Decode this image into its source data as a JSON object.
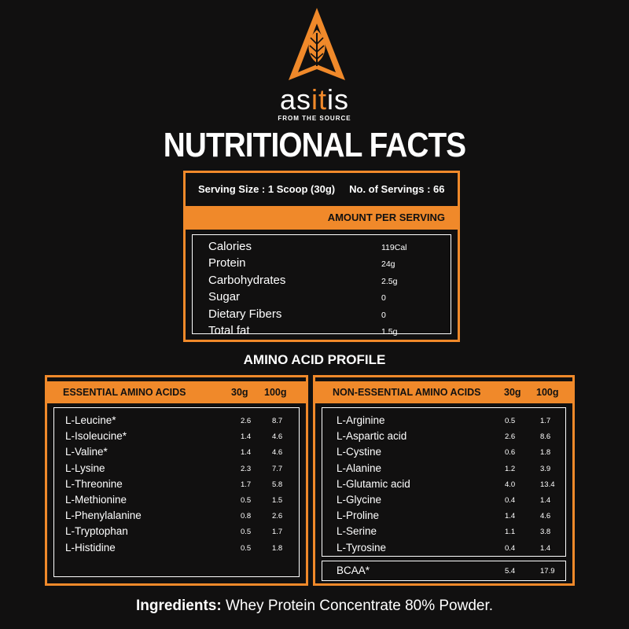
{
  "brand": {
    "name_a": "as",
    "name_b": "it",
    "name_c": "is",
    "tagline": "FROM THE SOURCE",
    "accent": "#f0892a"
  },
  "title": "NUTRITIONAL FACTS",
  "serving": {
    "size": "Serving Size : 1 Scoop (30g)",
    "count": "No. of Servings : 66",
    "header": "AMOUNT PER SERVING",
    "items": [
      {
        "label": "Calories",
        "value": "119Cal"
      },
      {
        "label": "Protein",
        "value": "24g"
      },
      {
        "label": "Carbohydrates",
        "value": "2.5g"
      },
      {
        "label": "Sugar",
        "value": "0"
      },
      {
        "label": "Dietary Fibers",
        "value": "0"
      },
      {
        "label": "Total fat",
        "value": "1.5g"
      }
    ]
  },
  "amino_title": "AMINO ACID PROFILE",
  "essential": {
    "header": "ESSENTIAL AMINO ACIDS",
    "col1": "30g",
    "col2": "100g",
    "items": [
      {
        "label": "L-Leucine*",
        "v30": "2.6",
        "v100": "8.7"
      },
      {
        "label": "L-Isoleucine*",
        "v30": "1.4",
        "v100": "4.6"
      },
      {
        "label": "L-Valine*",
        "v30": "1.4",
        "v100": "4.6"
      },
      {
        "label": "L-Lysine",
        "v30": "2.3",
        "v100": "7.7"
      },
      {
        "label": "L-Threonine",
        "v30": "1.7",
        "v100": "5.8"
      },
      {
        "label": "L-Methionine",
        "v30": "0.5",
        "v100": "1.5"
      },
      {
        "label": "L-Phenylalanine",
        "v30": "0.8",
        "v100": "2.6"
      },
      {
        "label": "L-Tryptophan",
        "v30": "0.5",
        "v100": "1.7"
      },
      {
        "label": "L-Histidine",
        "v30": "0.5",
        "v100": "1.8"
      }
    ]
  },
  "nonessential": {
    "header": "NON-ESSENTIAL AMINO ACIDS",
    "col1": "30g",
    "col2": "100g",
    "items": [
      {
        "label": "L-Arginine",
        "v30": "0.5",
        "v100": "1.7"
      },
      {
        "label": "L-Aspartic acid",
        "v30": "2.6",
        "v100": "8.6"
      },
      {
        "label": "L-Cystine",
        "v30": "0.6",
        "v100": "1.8"
      },
      {
        "label": "L-Alanine",
        "v30": "1.2",
        "v100": "3.9"
      },
      {
        "label": "L-Glutamic acid",
        "v30": "4.0",
        "v100": "13.4"
      },
      {
        "label": "L-Glycine",
        "v30": "0.4",
        "v100": "1.4"
      },
      {
        "label": "L-Proline",
        "v30": "1.4",
        "v100": "4.6"
      },
      {
        "label": "L-Serine",
        "v30": "1.1",
        "v100": "3.8"
      },
      {
        "label": "L-Tyrosine",
        "v30": "0.4",
        "v100": "1.4"
      }
    ],
    "bcaa": {
      "label": "BCAA*",
      "v30": "5.4",
      "v100": "17.9"
    }
  },
  "ingredients": {
    "label": "Ingredients:",
    "text": "Whey Protein Concentrate 80% Powder."
  }
}
